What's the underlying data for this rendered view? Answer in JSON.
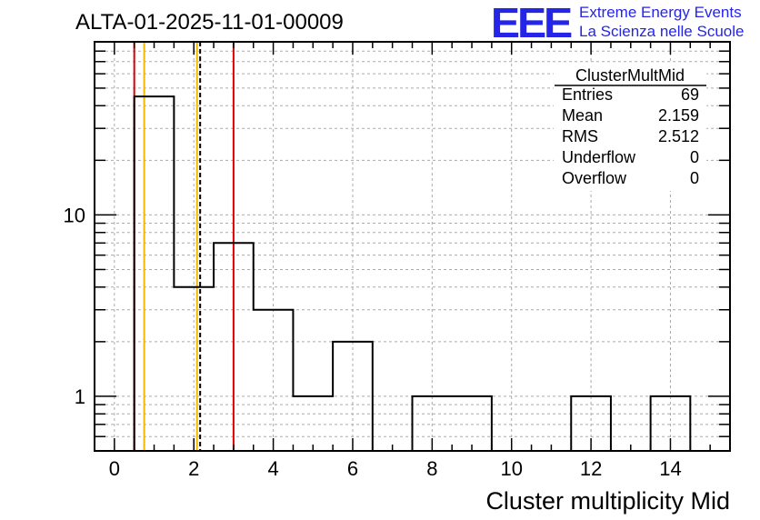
{
  "header": {
    "title": "ALTA-01-2025-11-01-00009"
  },
  "logo": {
    "letters": "EEE",
    "line1": "Extreme Energy Events",
    "line2": "La Scienza nelle Scuole",
    "color": "#2525e8"
  },
  "stats_box": {
    "name": "ClusterMultMid",
    "rows": [
      {
        "label": "Entries",
        "value": "69"
      },
      {
        "label": "Mean",
        "value": "2.159"
      },
      {
        "label": "RMS",
        "value": "2.512"
      },
      {
        "label": "Underflow",
        "value": "0"
      },
      {
        "label": "Overflow",
        "value": "0"
      }
    ]
  },
  "chart_data": {
    "type": "histogram",
    "title": "ALTA-01-2025-11-01-00009",
    "xlabel": "Cluster multiplicity Mid",
    "ylabel": "",
    "yscale": "log",
    "xlim": [
      -0.5,
      15.5
    ],
    "ylim": [
      0.5,
      90
    ],
    "bin_edges": [
      0.5,
      1.5,
      2.5,
      3.5,
      4.5,
      5.5,
      6.5,
      7.5,
      8.5,
      9.5,
      10.5,
      11.5,
      12.5,
      13.5,
      14.5
    ],
    "bin_counts": [
      45,
      4,
      7,
      3,
      1,
      2,
      0,
      1,
      1,
      0,
      0,
      1,
      0,
      1
    ],
    "x_ticks": [
      0,
      2,
      4,
      6,
      8,
      10,
      12,
      14
    ],
    "x_tick_labels": [
      "0",
      "2",
      "4",
      "6",
      "8",
      "10",
      "12",
      "14"
    ],
    "y_ticks": [
      1,
      10
    ],
    "y_tick_labels": [
      "1",
      "10"
    ],
    "grid": true,
    "vertical_lines": [
      {
        "x": 0.5,
        "color": "#dd0000",
        "style": "solid"
      },
      {
        "x": 0.75,
        "color": "#f2b800",
        "style": "solid"
      },
      {
        "x": 2.08,
        "color": "#f2b800",
        "style": "solid"
      },
      {
        "x": 2.159,
        "color": "#000000",
        "style": "dashed"
      },
      {
        "x": 3.0,
        "color": "#dd0000",
        "style": "solid"
      }
    ]
  }
}
